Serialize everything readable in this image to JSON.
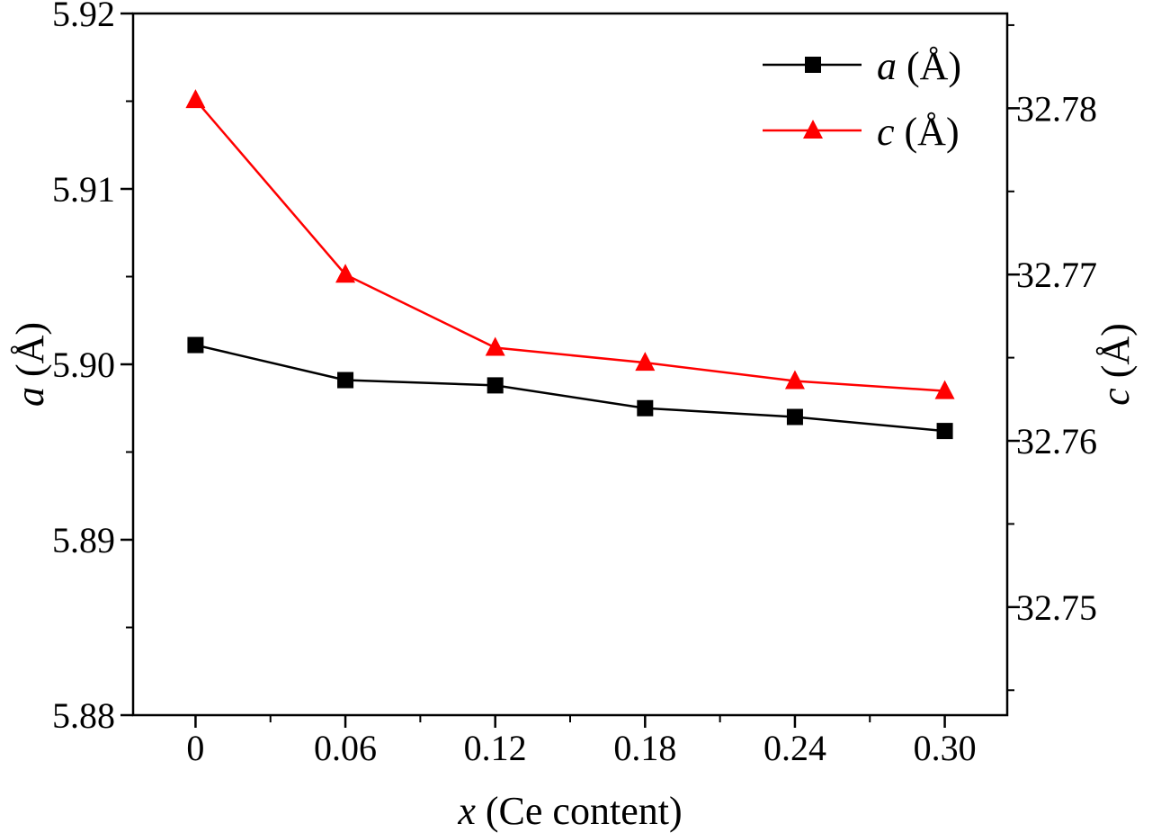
{
  "chart_data": {
    "type": "line",
    "x_axis": {
      "label_var": "x",
      "label_rest": " (Ce content)",
      "categories": [
        "0",
        "0.06",
        "0.12",
        "0.18",
        "0.24",
        "0.30"
      ],
      "values": [
        0,
        0.06,
        0.12,
        0.18,
        0.24,
        0.3
      ],
      "range": [
        -0.025,
        0.325
      ]
    },
    "y_left": {
      "label_var": "a",
      "label_unit": "(Å)",
      "range": [
        5.88,
        5.92
      ],
      "ticks": [
        "5.88",
        "5.89",
        "5.90",
        "5.91",
        "5.92"
      ]
    },
    "y_right": {
      "label_var": "c",
      "label_unit": "(Å)",
      "range": [
        32.7435,
        32.7857
      ],
      "ticks": [
        "32.75",
        "32.76",
        "32.77",
        "32.78"
      ]
    },
    "series": [
      {
        "name_var": "a",
        "name_unit": "(Å)",
        "axis": "left",
        "marker": "square",
        "color": "#000000",
        "values": [
          5.9011,
          5.8991,
          5.8988,
          5.8975,
          5.897,
          5.8962
        ]
      },
      {
        "name_var": "c",
        "name_unit": "(Å)",
        "axis": "right",
        "marker": "triangle",
        "color": "#ff0000",
        "values": [
          32.7805,
          32.77,
          32.7656,
          32.7647,
          32.7636,
          32.763
        ]
      }
    ],
    "legend_position": "top-right",
    "grid": false
  }
}
